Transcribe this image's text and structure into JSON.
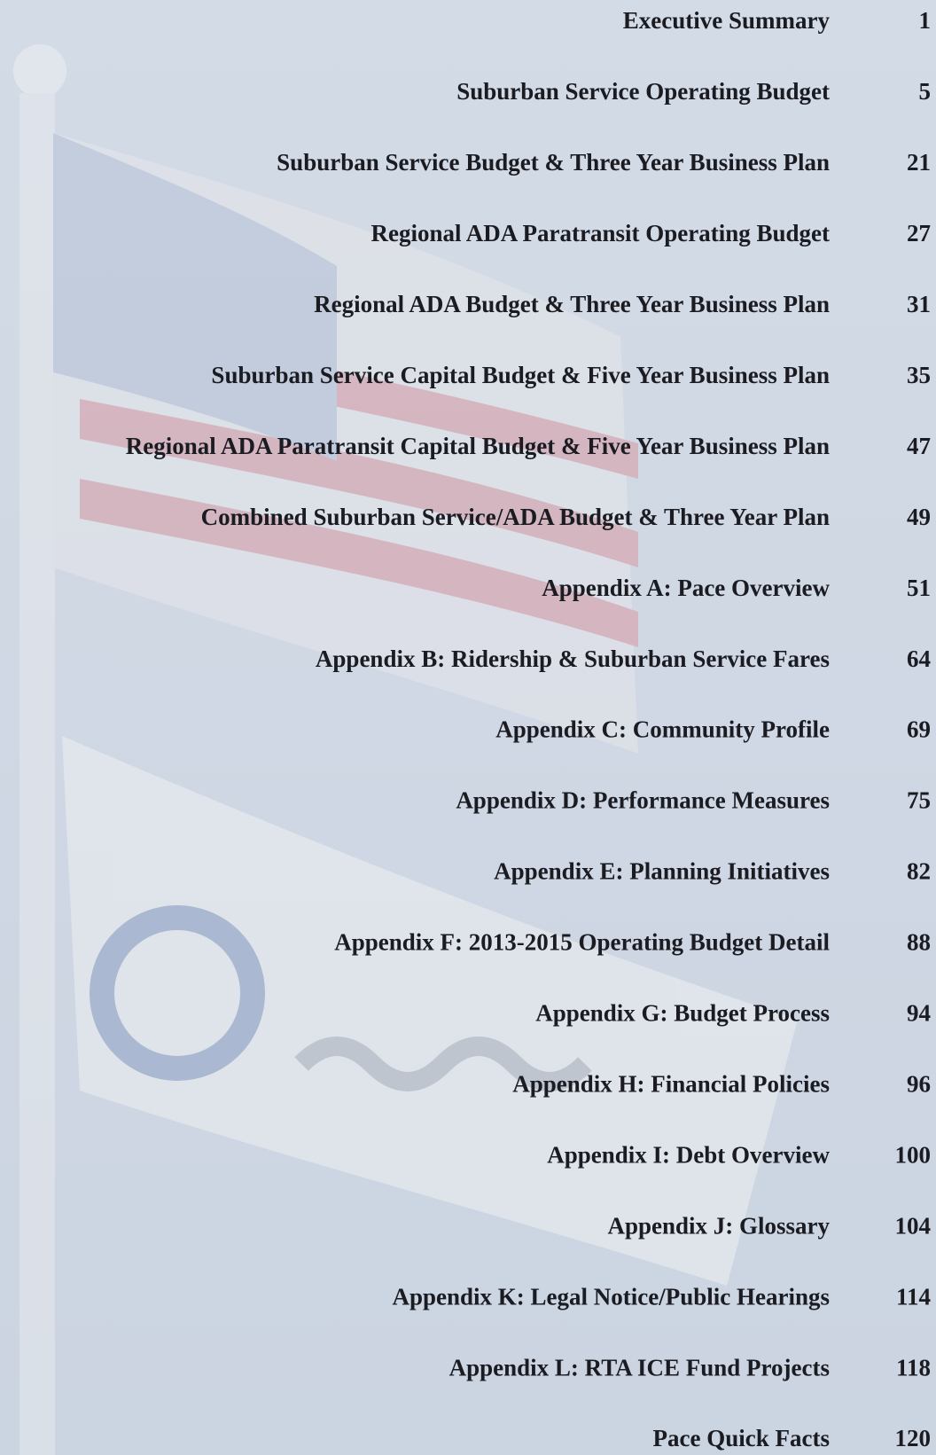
{
  "toc": {
    "entries": [
      {
        "title": "Executive Summary",
        "page": 1
      },
      {
        "title": "Suburban Service Operating Budget",
        "page": 5
      },
      {
        "title": "Suburban Service Budget & Three Year Business Plan",
        "page": 21
      },
      {
        "title": "Regional ADA Paratransit Operating Budget",
        "page": 27
      },
      {
        "title": "Regional ADA Budget & Three Year Business Plan",
        "page": 31
      },
      {
        "title": "Suburban Service Capital Budget & Five Year Business Plan",
        "page": 35
      },
      {
        "title": "Regional ADA Paratransit Capital Budget & Five Year Business Plan",
        "page": 47
      },
      {
        "title": "Combined Suburban Service/ADA Budget & Three Year Plan",
        "page": 49
      },
      {
        "title": "Appendix A: Pace Overview",
        "page": 51
      },
      {
        "title": "Appendix B: Ridership & Suburban Service Fares",
        "page": 64
      },
      {
        "title": "Appendix C: Community Profile",
        "page": 69
      },
      {
        "title": "Appendix D: Performance Measures",
        "page": 75
      },
      {
        "title": "Appendix E: Planning Initiatives",
        "page": 82
      },
      {
        "title": "Appendix F: 2013-2015 Operating Budget Detail",
        "page": 88
      },
      {
        "title": "Appendix G: Budget Process",
        "page": 94
      },
      {
        "title": "Appendix H: Financial Policies",
        "page": 96
      },
      {
        "title": "Appendix I: Debt Overview",
        "page": 100
      },
      {
        "title": "Appendix J: Glossary",
        "page": 104
      },
      {
        "title": "Appendix K: Legal Notice/Public Hearings",
        "page": 114
      },
      {
        "title": "Appendix L: RTA ICE Fund Projects",
        "page": 118
      },
      {
        "title": "Pace Quick Facts",
        "page": 120
      }
    ]
  }
}
